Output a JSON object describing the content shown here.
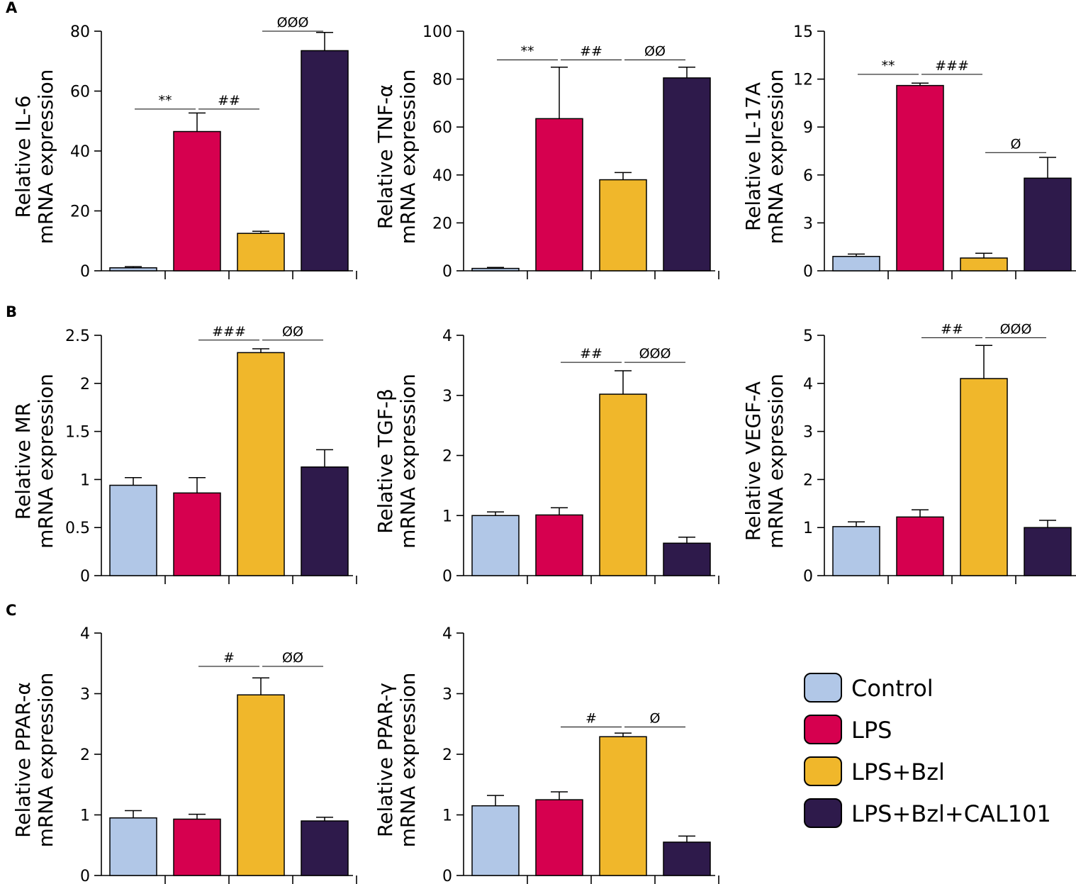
{
  "panels": [
    "A",
    "B",
    "C"
  ],
  "legend": [
    {
      "label": "Control",
      "color": "#b1c7e7"
    },
    {
      "label": "LPS",
      "color": "#d6004f"
    },
    {
      "label": "LPS+Bzl",
      "color": "#f0b72b"
    },
    {
      "label": "LPS+Bzl+CAL101",
      "color": "#2e1a4b"
    }
  ],
  "chart_data": [
    {
      "type": "bar",
      "ylabel": [
        "Relative IL-6",
        "mRNA expression"
      ],
      "categories": [
        "Control",
        "LPS",
        "LPS+Bzl",
        "LPS+Bzl+CAL101"
      ],
      "values": [
        1.0,
        46.5,
        12.5,
        73.5
      ],
      "errors": [
        0.4,
        6.2,
        0.7,
        6.1
      ],
      "ylim": [
        0,
        80
      ],
      "yticks": [
        "0",
        "20",
        "40",
        "60",
        "80"
      ],
      "annotations": [
        {
          "text": "**",
          "from": 0,
          "to": 1,
          "y": 54
        },
        {
          "text": "##",
          "from": 1,
          "to": 2,
          "y": 54
        },
        {
          "text": "ØØØ",
          "from": 2,
          "to": 3,
          "y": 80
        }
      ]
    },
    {
      "type": "bar",
      "ylabel": [
        "Relative TNF-α",
        "mRNA expression"
      ],
      "categories": [
        "Control",
        "LPS",
        "LPS+Bzl",
        "LPS+Bzl+CAL101"
      ],
      "values": [
        1.0,
        63.5,
        38.0,
        80.5
      ],
      "errors": [
        0.4,
        21.5,
        3.0,
        4.5
      ],
      "ylim": [
        0,
        100
      ],
      "yticks": [
        "0",
        "20",
        "40",
        "60",
        "80",
        "100"
      ],
      "annotations": [
        {
          "text": "**",
          "from": 0,
          "to": 1,
          "y": 88
        },
        {
          "text": "##",
          "from": 1,
          "to": 2,
          "y": 88
        },
        {
          "text": "ØØ",
          "from": 2,
          "to": 3,
          "y": 88
        }
      ]
    },
    {
      "type": "bar",
      "ylabel": [
        "Relative IL-17A",
        "mRNA expression"
      ],
      "categories": [
        "Control",
        "LPS",
        "LPS+Bzl",
        "LPS+Bzl+CAL101"
      ],
      "values": [
        0.9,
        11.6,
        0.8,
        5.8
      ],
      "errors": [
        0.15,
        0.15,
        0.3,
        1.3
      ],
      "ylim": [
        0,
        15
      ],
      "yticks": [
        "0",
        "3",
        "6",
        "9",
        "12",
        "15"
      ],
      "annotations": [
        {
          "text": "**",
          "from": 0,
          "to": 1,
          "y": 12.3
        },
        {
          "text": "###",
          "from": 1,
          "to": 2,
          "y": 12.3
        },
        {
          "text": "Ø",
          "from": 2,
          "to": 3,
          "y": 7.4
        }
      ]
    },
    {
      "type": "bar",
      "ylabel": [
        "Relative MR",
        "mRNA expression"
      ],
      "categories": [
        "Control",
        "LPS",
        "LPS+Bzl",
        "LPS+Bzl+CAL101"
      ],
      "values": [
        0.94,
        0.86,
        2.32,
        1.13
      ],
      "errors": [
        0.08,
        0.16,
        0.04,
        0.18
      ],
      "ylim": [
        0,
        2.5
      ],
      "yticks": [
        "0",
        "0.5",
        "1",
        "1.5",
        "2",
        "2.5"
      ],
      "annotations": [
        {
          "text": "###",
          "from": 1,
          "to": 2,
          "y": 2.45
        },
        {
          "text": "ØØ",
          "from": 2,
          "to": 3,
          "y": 2.45
        }
      ]
    },
    {
      "type": "bar",
      "ylabel": [
        "Relative TGF-β",
        "mRNA expression"
      ],
      "categories": [
        "Control",
        "LPS",
        "LPS+Bzl",
        "LPS+Bzl+CAL101"
      ],
      "values": [
        1.0,
        1.01,
        3.02,
        0.54
      ],
      "errors": [
        0.06,
        0.12,
        0.39,
        0.1
      ],
      "ylim": [
        0,
        4
      ],
      "yticks": [
        "0",
        "1",
        "2",
        "3",
        "4"
      ],
      "annotations": [
        {
          "text": "##",
          "from": 1,
          "to": 2,
          "y": 3.55
        },
        {
          "text": "ØØØ",
          "from": 2,
          "to": 3,
          "y": 3.55
        }
      ]
    },
    {
      "type": "bar",
      "ylabel": [
        "Relative VEGF-A",
        "mRNA expression"
      ],
      "categories": [
        "Control",
        "LPS",
        "LPS+Bzl",
        "LPS+Bzl+CAL101"
      ],
      "values": [
        1.02,
        1.22,
        4.1,
        1.0
      ],
      "errors": [
        0.1,
        0.15,
        0.69,
        0.15
      ],
      "ylim": [
        0,
        5
      ],
      "yticks": [
        "0",
        "1",
        "2",
        "3",
        "4",
        "5"
      ],
      "annotations": [
        {
          "text": "##",
          "from": 1,
          "to": 2,
          "y": 4.95
        },
        {
          "text": "ØØØ",
          "from": 2,
          "to": 3,
          "y": 4.95
        }
      ]
    },
    {
      "type": "bar",
      "ylabel": [
        "Relative PPAR-α",
        "mRNA expression"
      ],
      "categories": [
        "Control",
        "LPS",
        "LPS+Bzl",
        "LPS+Bzl+CAL101"
      ],
      "values": [
        0.95,
        0.93,
        2.98,
        0.9
      ],
      "errors": [
        0.12,
        0.08,
        0.28,
        0.06
      ],
      "ylim": [
        0,
        4
      ],
      "yticks": [
        "0",
        "1",
        "2",
        "3",
        "4"
      ],
      "annotations": [
        {
          "text": "#",
          "from": 1,
          "to": 2,
          "y": 3.45
        },
        {
          "text": "ØØ",
          "from": 2,
          "to": 3,
          "y": 3.45
        }
      ]
    },
    {
      "type": "bar",
      "ylabel": [
        "Relative PPAR-γ",
        "mRNA expression"
      ],
      "categories": [
        "Control",
        "LPS",
        "LPS+Bzl",
        "LPS+Bzl+CAL101"
      ],
      "values": [
        1.15,
        1.25,
        2.29,
        0.55
      ],
      "errors": [
        0.17,
        0.13,
        0.06,
        0.1
      ],
      "ylim": [
        0,
        4
      ],
      "yticks": [
        "0",
        "1",
        "2",
        "3",
        "4"
      ],
      "annotations": [
        {
          "text": "#",
          "from": 1,
          "to": 2,
          "y": 2.45
        },
        {
          "text": "Ø",
          "from": 2,
          "to": 3,
          "y": 2.45
        }
      ]
    }
  ]
}
